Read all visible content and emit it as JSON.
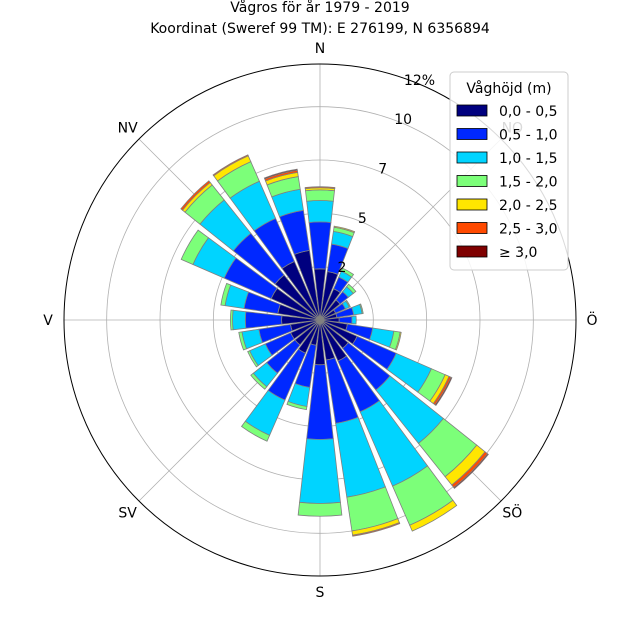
{
  "chart_data": {
    "type": "windrose",
    "title_line1": "Vågros för år 1979 - 2019",
    "title_line2": "Koordinat (Sweref 99 TM): E 276199, N 6356894",
    "direction_labels": [
      "N",
      "Ö",
      "S",
      "V",
      "NV",
      "SÖ",
      "SV",
      "NO"
    ],
    "radial_tick_labels": [
      "2",
      "5",
      "7",
      "10",
      "12%"
    ],
    "rmax": 12,
    "legend_title": "Våghöjd (m)",
    "bins": [
      {
        "label": "0,0 - 0,5",
        "color": "#00007f"
      },
      {
        "label": "0,5 - 1,0",
        "color": "#0028ff"
      },
      {
        "label": "1,0 - 1,5",
        "color": "#00d4ff"
      },
      {
        "label": "1,5 - 2,0",
        "color": "#7cff79"
      },
      {
        "label": "2,0 - 2,5",
        "color": "#ffe600"
      },
      {
        "label": "2,5 - 3,0",
        "color": "#ff4a00"
      },
      {
        "label": "≥ 3,0",
        "color": "#7f0000"
      }
    ],
    "sector_width_deg": 15,
    "sectors": [
      {
        "dir": 0,
        "values": [
          2.4,
          2.2,
          1.0,
          0.5,
          0.1,
          0.05,
          0.0
        ]
      },
      {
        "dir": 15,
        "values": [
          2.3,
          1.3,
          0.6,
          0.2,
          0.05,
          0.0,
          0.0
        ]
      },
      {
        "dir": 30,
        "values": [
          1.6,
          0.6,
          0.3,
          0.15,
          0.0,
          0.0,
          0.0
        ]
      },
      {
        "dir": 45,
        "values": [
          1.2,
          0.5,
          0.3,
          0.15,
          0.0,
          0.0,
          0.0
        ]
      },
      {
        "dir": 60,
        "values": [
          0.8,
          0.5,
          0.2,
          0.05,
          0.0,
          0.0,
          0.0
        ]
      },
      {
        "dir": 75,
        "values": [
          0.8,
          0.8,
          0.4,
          0.05,
          0.0,
          0.0,
          0.0
        ]
      },
      {
        "dir": 90,
        "values": [
          0.9,
          0.6,
          0.2,
          0.0,
          0.0,
          0.0,
          0.0
        ]
      },
      {
        "dir": 105,
        "values": [
          1.3,
          1.2,
          1.0,
          0.3,
          0.05,
          0.0,
          0.0
        ]
      },
      {
        "dir": 120,
        "values": [
          1.9,
          2.0,
          1.8,
          0.7,
          0.2,
          0.1,
          0.05
        ]
      },
      {
        "dir": 135,
        "values": [
          1.7,
          2.5,
          3.2,
          2.0,
          0.5,
          0.15,
          0.05
        ]
      },
      {
        "dir": 150,
        "values": [
          2.1,
          2.6,
          3.8,
          2.0,
          0.3,
          0.0,
          0.0
        ]
      },
      {
        "dir": 165,
        "values": [
          1.9,
          3.0,
          3.5,
          1.6,
          0.2,
          0.05,
          0.0
        ]
      },
      {
        "dir": 180,
        "values": [
          2.1,
          3.5,
          3.0,
          0.6,
          0.0,
          0.0,
          0.0
        ]
      },
      {
        "dir": 195,
        "values": [
          1.2,
          2.0,
          0.9,
          0.15,
          0.0,
          0.0,
          0.0
        ]
      },
      {
        "dir": 210,
        "values": [
          1.7,
          2.4,
          1.8,
          0.3,
          0.0,
          0.0,
          0.0
        ]
      },
      {
        "dir": 225,
        "values": [
          1.5,
          1.7,
          0.8,
          0.15,
          0.0,
          0.0,
          0.0
        ]
      },
      {
        "dir": 240,
        "values": [
          1.5,
          1.3,
          0.8,
          0.1,
          0.0,
          0.0,
          0.0
        ]
      },
      {
        "dir": 255,
        "values": [
          1.4,
          1.5,
          0.8,
          0.15,
          0.0,
          0.0,
          0.0
        ]
      },
      {
        "dir": 270,
        "values": [
          1.8,
          1.7,
          0.6,
          0.1,
          0.0,
          0.0,
          0.0
        ]
      },
      {
        "dir": 285,
        "values": [
          2.0,
          1.6,
          0.9,
          0.2,
          0.0,
          0.0,
          0.0
        ]
      },
      {
        "dir": 300,
        "values": [
          2.5,
          2.4,
          1.6,
          0.6,
          0.0,
          0.0,
          0.0
        ]
      },
      {
        "dir": 315,
        "values": [
          2.7,
          2.5,
          2.0,
          0.9,
          0.15,
          0.1,
          0.0
        ]
      },
      {
        "dir": 330,
        "values": [
          3.0,
          2.2,
          1.9,
          1.0,
          0.3,
          0.05,
          0.0
        ]
      },
      {
        "dir": 345,
        "values": [
          3.3,
          1.9,
          1.0,
          0.6,
          0.2,
          0.1,
          0.05
        ]
      }
    ],
    "grid": true,
    "legend_position": "top-right"
  }
}
